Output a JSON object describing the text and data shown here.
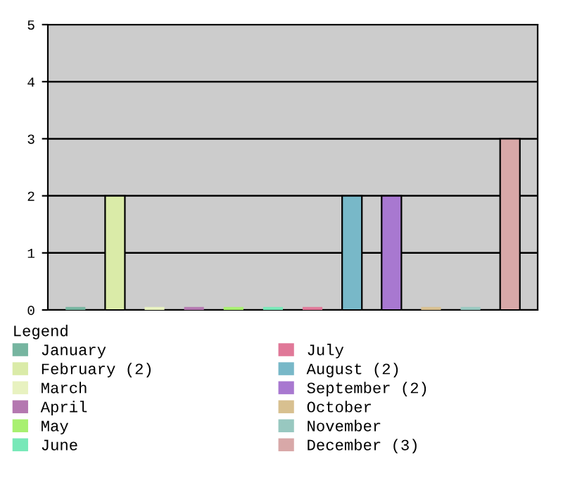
{
  "chart_data": {
    "type": "bar",
    "categories": [
      null,
      null,
      null,
      null,
      null,
      null,
      null,
      null,
      null,
      null,
      null,
      null
    ],
    "series": [
      {
        "name": "January",
        "color": "#76b5a0",
        "values": [
          0,
          null,
          null,
          null,
          null,
          null,
          null,
          null,
          null,
          null,
          null,
          null
        ]
      },
      {
        "name": "February (2)",
        "color": "#daeba8",
        "values": [
          null,
          2,
          null,
          null,
          null,
          null,
          null,
          null,
          null,
          null,
          null,
          null
        ]
      },
      {
        "name": "March",
        "color": "#e8f2c0",
        "values": [
          null,
          null,
          0,
          null,
          null,
          null,
          null,
          null,
          null,
          null,
          null,
          null
        ]
      },
      {
        "name": "April",
        "color": "#b478b0",
        "values": [
          null,
          null,
          null,
          0,
          null,
          null,
          null,
          null,
          null,
          null,
          null,
          null
        ]
      },
      {
        "name": "May",
        "color": "#a8f070",
        "values": [
          null,
          null,
          null,
          null,
          0,
          null,
          null,
          null,
          null,
          null,
          null,
          null
        ]
      },
      {
        "name": "June",
        "color": "#78e8b8",
        "values": [
          null,
          null,
          null,
          null,
          null,
          0,
          null,
          null,
          null,
          null,
          null,
          null
        ]
      },
      {
        "name": "July",
        "color": "#e07898",
        "values": [
          null,
          null,
          null,
          null,
          null,
          null,
          0,
          null,
          null,
          null,
          null,
          null
        ]
      },
      {
        "name": "August (2)",
        "color": "#78b8c8",
        "values": [
          null,
          null,
          null,
          null,
          null,
          null,
          null,
          2,
          null,
          null,
          null,
          null
        ]
      },
      {
        "name": "September (2)",
        "color": "#a878d0",
        "values": [
          null,
          null,
          null,
          null,
          null,
          null,
          null,
          null,
          2,
          null,
          null,
          null
        ]
      },
      {
        "name": "October",
        "color": "#d8c090",
        "values": [
          null,
          null,
          null,
          null,
          null,
          null,
          null,
          null,
          null,
          0,
          null,
          null
        ]
      },
      {
        "name": "November",
        "color": "#98c8c0",
        "values": [
          null,
          null,
          null,
          null,
          null,
          null,
          null,
          null,
          null,
          null,
          0,
          null
        ]
      },
      {
        "name": "December (3)",
        "color": "#d8a8a8",
        "values": [
          null,
          null,
          null,
          null,
          null,
          null,
          null,
          null,
          null,
          null,
          null,
          3
        ]
      }
    ],
    "ylim": [
      0,
      5
    ],
    "yticks": [
      0,
      1,
      2,
      3,
      4,
      5
    ],
    "grid": "y",
    "legend": "bottom",
    "legend_title": "Legend",
    "tick_labels": "y"
  }
}
